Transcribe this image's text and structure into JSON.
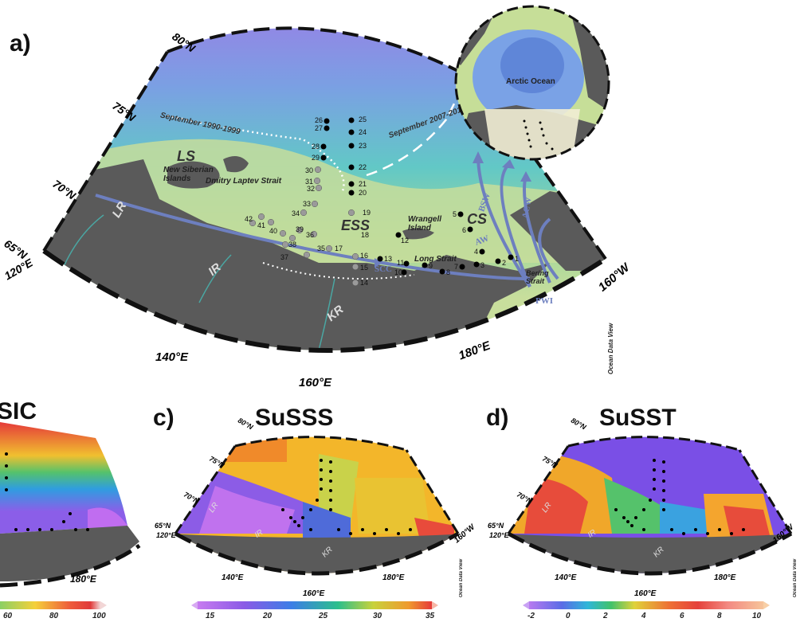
{
  "panel_a": {
    "letter": "a)",
    "lat_labels": [
      "80°N",
      "75°N",
      "70°N",
      "65°N"
    ],
    "lon_labels": [
      "120°E",
      "140°E",
      "160°E",
      "180°E",
      "160°W"
    ],
    "region_labels": {
      "LS": "LS",
      "ESS": "ESS",
      "CS": "CS",
      "LR": "LR",
      "IR": "IR",
      "KR": "KR"
    },
    "place_labels": {
      "new_siberian": "New Siberian Islands",
      "dmitry": "Dmitry Laptev Strait",
      "wrangell": "Wrangell Island",
      "long_strait": "Long Strait",
      "bering": "Bering Strait",
      "arctic_ocean": "Arctic Ocean"
    },
    "ice_edge_labels": [
      "September 1990-1999",
      "September 2007-2016"
    ],
    "current_labels": [
      "SCC",
      "AW",
      "BSW",
      "ACW",
      "PWI"
    ],
    "odv": "Ocean Data View",
    "stations": [
      "1",
      "2",
      "3",
      "4",
      "5",
      "6",
      "7",
      "8",
      "9",
      "10",
      "11",
      "12",
      "13",
      "14",
      "15",
      "16",
      "17",
      "18",
      "19",
      "20",
      "21",
      "22",
      "23",
      "24",
      "25",
      "26",
      "27",
      "28",
      "29",
      "30",
      "31",
      "32",
      "33",
      "34",
      "35",
      "36",
      "37",
      "38",
      "39",
      "40",
      "41",
      "42"
    ]
  },
  "panel_b": {
    "title_visible": "SIC",
    "colorbar_ticks": [
      "60",
      "80",
      "100"
    ],
    "lon_label": "180°E"
  },
  "panel_c": {
    "letter": "c)",
    "title": "SuSSS",
    "lat_labels": [
      "80°N",
      "75°N",
      "70°N",
      "65°N",
      "120°E"
    ],
    "lon_labels": [
      "140°E",
      "160°E",
      "180°E",
      "160°W"
    ],
    "regions": [
      "LR",
      "IR",
      "KR"
    ],
    "colorbar_ticks": [
      "15",
      "20",
      "25",
      "30",
      "35"
    ],
    "odv": "Ocean Data View"
  },
  "panel_d": {
    "letter": "d)",
    "title": "SuSST",
    "lat_labels": [
      "80°N",
      "75°N",
      "70°N",
      "65°N",
      "120°E"
    ],
    "lon_labels": [
      "140°E",
      "160°E",
      "180°E",
      "160°W"
    ],
    "regions": [
      "LR",
      "IR",
      "KR"
    ],
    "colorbar_ticks": [
      "-2",
      "0",
      "2",
      "4",
      "6",
      "8",
      "10"
    ],
    "odv": "Ocean Data View"
  },
  "colors": {
    "land": "#5a5a5a",
    "shelf": "#c9dd9a",
    "deep": "#8f7ae0",
    "mid": "#63c9c4",
    "current": "#6d7fbf"
  }
}
